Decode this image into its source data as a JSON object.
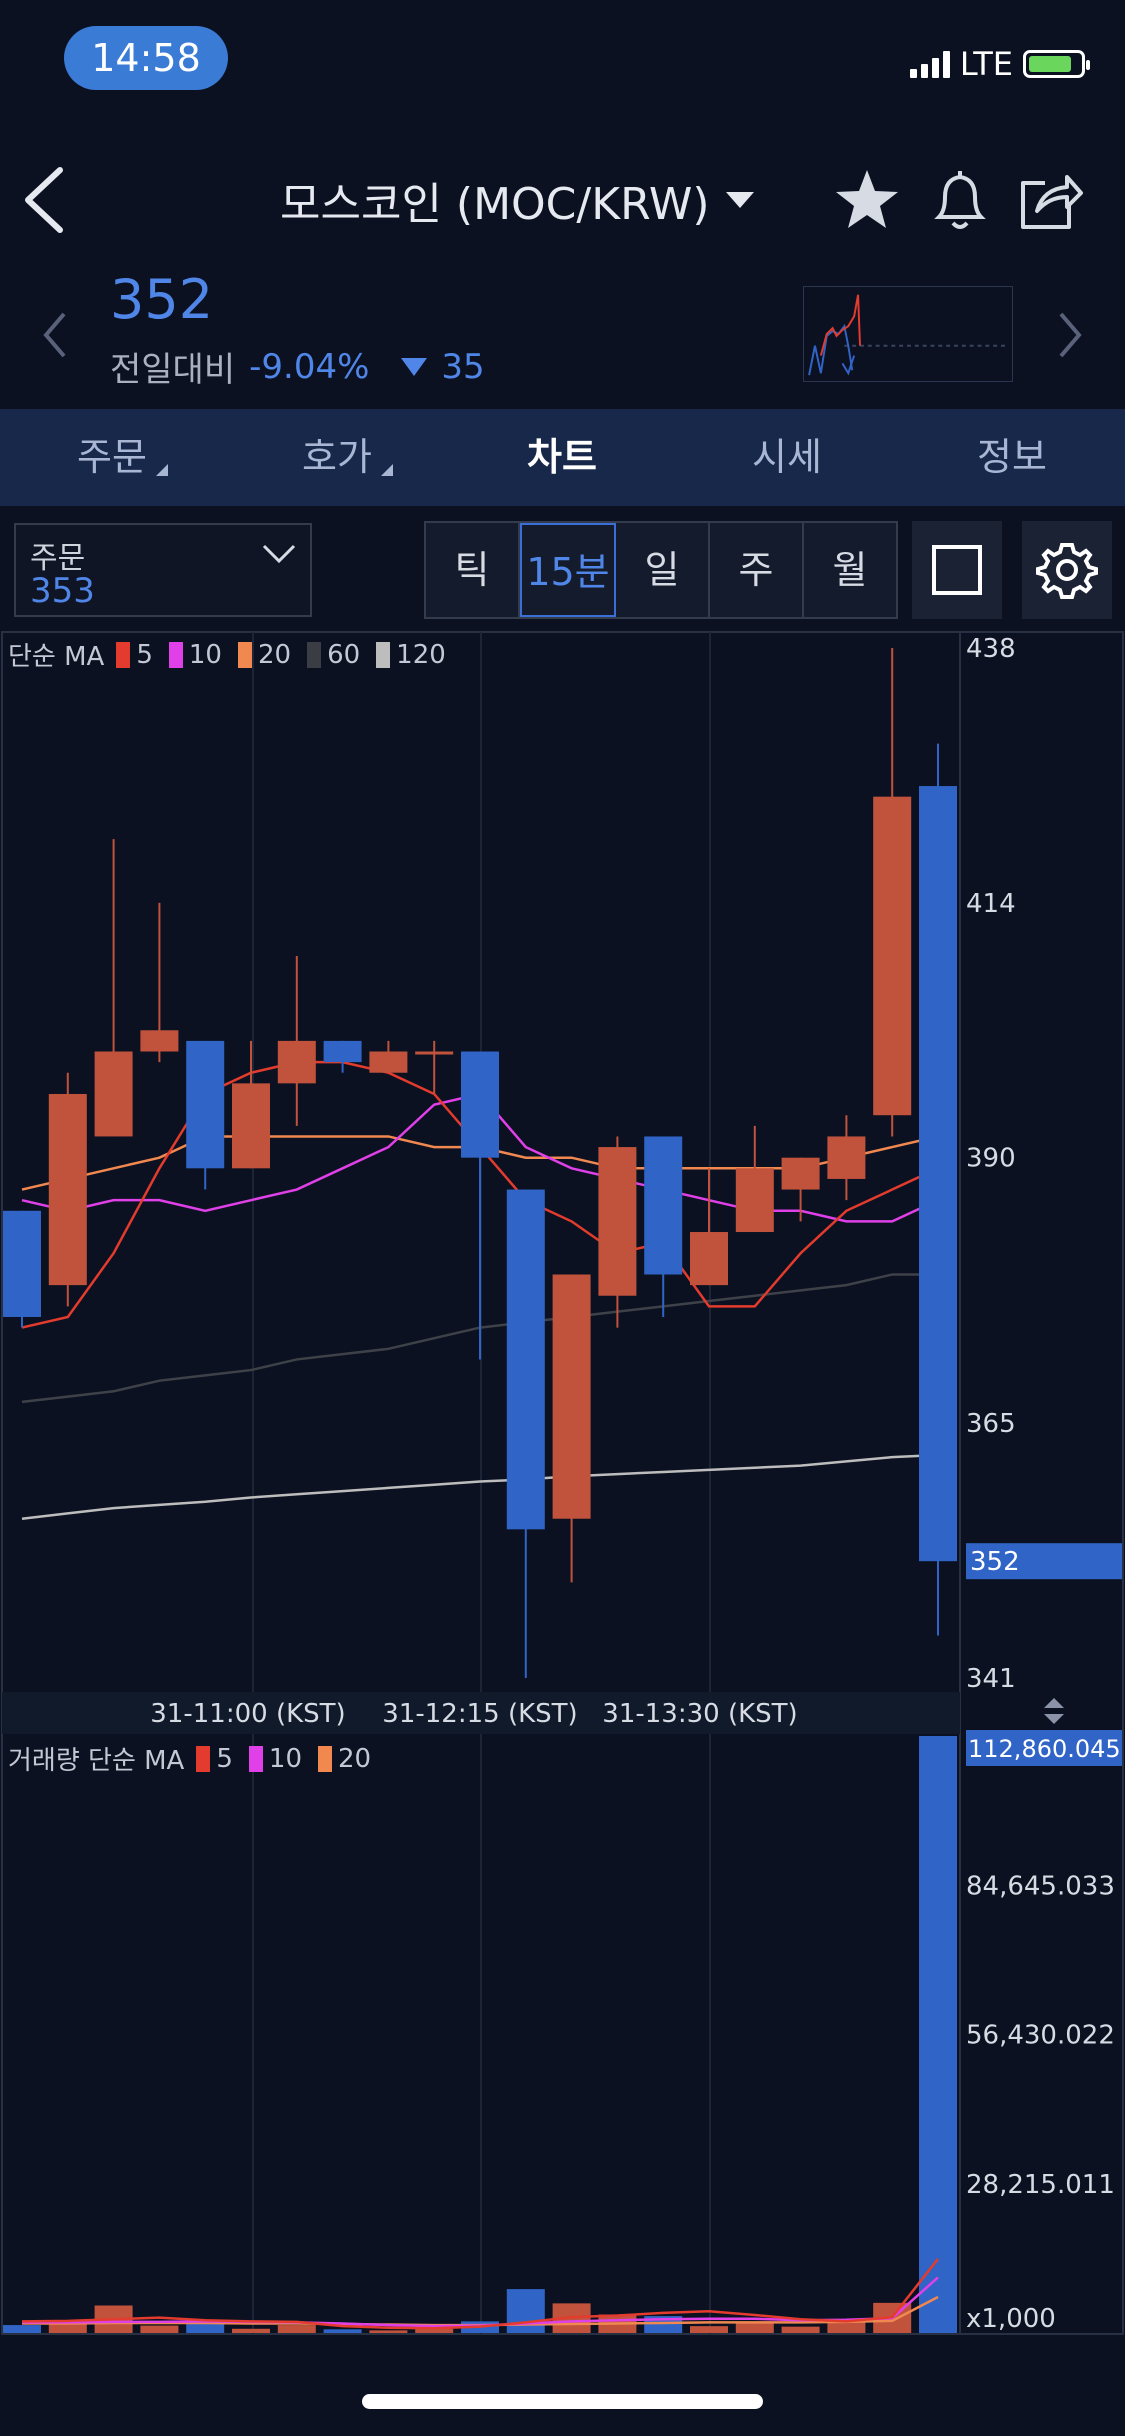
{
  "status_bar": {
    "time": "14:58",
    "network": "LTE"
  },
  "header": {
    "title": "모스코인 (MOC/KRW)"
  },
  "icons": {
    "back": "chevron-left-icon",
    "dropdown": "caret-down-icon",
    "favorite": "star-icon",
    "alarm": "bell-icon",
    "share": "share-icon",
    "settings": "gear-icon"
  },
  "price": {
    "current": "352",
    "change_label": "전일대비",
    "change_pct": "-9.04%",
    "change_amount": "35"
  },
  "tabs": [
    {
      "label": "주문"
    },
    {
      "label": "호가"
    },
    {
      "label": "차트"
    },
    {
      "label": "시세"
    },
    {
      "label": "정보"
    }
  ],
  "order": {
    "label": "주문",
    "value": "353"
  },
  "intervals": [
    {
      "label": "틱"
    },
    {
      "label": "15분"
    },
    {
      "label": "일"
    },
    {
      "label": "주"
    },
    {
      "label": "월"
    }
  ],
  "colors": {
    "up": "#c1533d",
    "down": "#3064c6",
    "ma5": "#e33b2d",
    "ma10": "#e040e8",
    "ma20": "#f08850",
    "ma60": "#3a3d44",
    "ma120": "#bdbdbd",
    "accent": "#4f86e8",
    "tabbar": "#17284b"
  },
  "price_legend": {
    "prefix": "단순 MA",
    "periods": [
      "5",
      "10",
      "20",
      "60",
      "120"
    ]
  },
  "volume_legend": {
    "prefix": "거래량 단순 MA",
    "periods": [
      "5",
      "10",
      "20"
    ]
  },
  "chart_data": [
    {
      "type": "candlestick",
      "ylim": [
        341,
        438
      ],
      "y_ticks": [
        "438",
        "414",
        "390",
        "365",
        "341"
      ],
      "current_price_label": "352",
      "x_tick_labels": [
        "31-11:00 (KST)",
        "31-12:15 (KST)",
        "31-13:30 (KST)"
      ],
      "candles": [
        {
          "o": 385,
          "h": 385,
          "c": 375,
          "l": 374
        },
        {
          "o": 378,
          "h": 398,
          "c": 396,
          "l": 376
        },
        {
          "o": 392,
          "h": 420,
          "c": 400,
          "l": 392
        },
        {
          "o": 400,
          "h": 414,
          "c": 402,
          "l": 399
        },
        {
          "o": 401,
          "h": 401,
          "c": 389,
          "l": 387
        },
        {
          "o": 389,
          "h": 401,
          "c": 397,
          "l": 389
        },
        {
          "o": 397,
          "h": 409,
          "c": 401,
          "l": 393
        },
        {
          "o": 401,
          "h": 401,
          "c": 399,
          "l": 398
        },
        {
          "o": 398,
          "h": 401,
          "c": 400,
          "l": 398
        },
        {
          "o": 400,
          "h": 401,
          "c": 400,
          "l": 396
        },
        {
          "o": 400,
          "h": 400,
          "c": 390,
          "l": 371
        },
        {
          "o": 387,
          "h": 387,
          "c": 355,
          "l": 341
        },
        {
          "o": 356,
          "h": 379,
          "c": 379,
          "l": 350
        },
        {
          "o": 377,
          "h": 392,
          "c": 391,
          "l": 374
        },
        {
          "o": 392,
          "h": 392,
          "c": 379,
          "l": 375
        },
        {
          "o": 378,
          "h": 389,
          "c": 383,
          "l": 378
        },
        {
          "o": 383,
          "h": 393,
          "c": 389,
          "l": 383
        },
        {
          "o": 387,
          "h": 390,
          "c": 390,
          "l": 384
        },
        {
          "o": 388,
          "h": 394,
          "c": 392,
          "l": 386
        },
        {
          "o": 394,
          "h": 438,
          "c": 424,
          "l": 392
        },
        {
          "o": 425,
          "h": 429,
          "c": 352,
          "l": 345
        }
      ],
      "ma_series": [
        {
          "period": "5",
          "values": [
            374,
            375,
            381,
            389,
            396,
            398,
            399,
            399,
            398,
            396,
            391,
            386,
            384,
            381,
            382,
            376,
            376,
            381,
            385,
            387,
            389
          ]
        },
        {
          "period": "10",
          "values": [
            386,
            385,
            386,
            386,
            385,
            386,
            387,
            389,
            391,
            395,
            396,
            391,
            389,
            388,
            387,
            386,
            385,
            385,
            384,
            384,
            386
          ]
        },
        {
          "period": "20",
          "values": [
            387,
            388,
            389,
            390,
            392,
            392,
            392,
            392,
            392,
            391,
            391,
            390,
            390,
            389,
            389,
            389,
            389,
            389,
            390,
            391,
            392
          ]
        },
        {
          "period": "60",
          "values": [
            367,
            367.5,
            368,
            369,
            369.5,
            370,
            371,
            371.5,
            372,
            373,
            374,
            374.5,
            375,
            375.5,
            376,
            376.5,
            377,
            377.5,
            378,
            379,
            379
          ]
        },
        {
          "period": "120",
          "values": [
            356,
            356.5,
            357,
            357.3,
            357.6,
            358,
            358.3,
            358.6,
            358.9,
            359.2,
            359.5,
            359.7,
            360,
            360.2,
            360.4,
            360.6,
            360.8,
            361,
            361.4,
            361.8,
            362
          ]
        }
      ]
    },
    {
      "type": "bar",
      "title": "거래량",
      "y_ticks": [
        "112,860.045",
        "84,645.033",
        "56,430.022",
        "28,215.011",
        "x1,000"
      ],
      "ylim": [
        0,
        112860.045
      ],
      "values": [
        1500,
        2100,
        5200,
        1400,
        1800,
        800,
        1500,
        700,
        500,
        800,
        2200,
        8300,
        5600,
        3500,
        3200,
        1300,
        1800,
        1200,
        2600,
        5700,
        117000
      ],
      "ma_series": [
        {
          "period": "5",
          "values": [
            2200,
            2300,
            2600,
            2900,
            2400,
            2200,
            2100,
            1300,
            1000,
            900,
            1200,
            2000,
            3000,
            3300,
            3800,
            4100,
            3400,
            2600,
            2200,
            3000,
            14000
          ]
        },
        {
          "period": "10",
          "values": [
            2000,
            2000,
            2100,
            2100,
            2200,
            2100,
            2000,
            1800,
            1500,
            1300,
            1400,
            1800,
            2200,
            2400,
            2600,
            2700,
            2700,
            2400,
            2500,
            2800,
            10500
          ]
        },
        {
          "period": "20",
          "values": [
            1800,
            1800,
            1900,
            1900,
            1900,
            1800,
            1800,
            1700,
            1600,
            1500,
            1500,
            1600,
            1700,
            1800,
            1900,
            2000,
            2000,
            2000,
            2100,
            2300,
            6800
          ]
        }
      ]
    }
  ]
}
